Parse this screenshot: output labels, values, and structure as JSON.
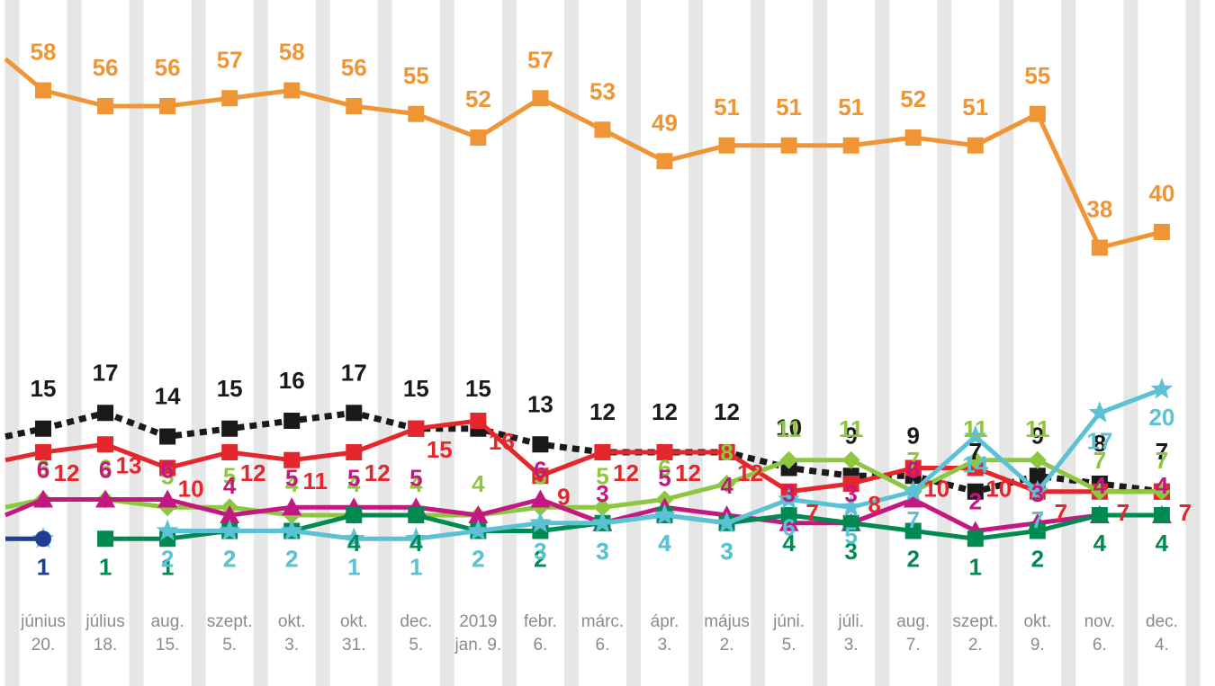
{
  "chart_data": {
    "type": "line",
    "title": "",
    "xlabel": "",
    "ylabel": "",
    "ylim": [
      0,
      60
    ],
    "grid": "vertical stripes",
    "categories": [
      [
        "június",
        "20."
      ],
      [
        "július",
        "18."
      ],
      [
        "aug.",
        "15."
      ],
      [
        "szept.",
        "5."
      ],
      [
        "okt.",
        "3."
      ],
      [
        "okt.",
        "31."
      ],
      [
        "dec.",
        "5."
      ],
      [
        "2019",
        "jan. 9."
      ],
      [
        "febr.",
        "6."
      ],
      [
        "márc.",
        "6."
      ],
      [
        "ápr.",
        "3."
      ],
      [
        "május",
        "2."
      ],
      [
        "júni.",
        "5."
      ],
      [
        "júli.",
        "3."
      ],
      [
        "aug.",
        "7."
      ],
      [
        "szept.",
        "2."
      ],
      [
        "okt.",
        "9."
      ],
      [
        "nov.",
        "6."
      ],
      [
        "dec.",
        "4."
      ]
    ],
    "series": [
      {
        "name": "orange",
        "color": "#ef9535",
        "marker": "square",
        "lead_in": 62,
        "values": [
          58,
          56,
          56,
          57,
          58,
          56,
          55,
          52,
          57,
          53,
          49,
          51,
          51,
          51,
          52,
          51,
          55,
          38,
          40
        ],
        "labels": [
          "58",
          "56",
          "56",
          "57",
          "58",
          "56",
          "55",
          "52",
          "57",
          "53",
          "49",
          "51",
          "51",
          "51",
          "52",
          "51",
          "55",
          "38",
          "40"
        ]
      },
      {
        "name": "black",
        "color": "#1a1a1a",
        "marker": "square",
        "dashed": true,
        "lead_in": 14,
        "values": [
          15,
          17,
          14,
          15,
          16,
          17,
          15,
          15,
          13,
          12,
          12,
          12,
          10,
          9,
          9,
          7,
          9,
          8,
          7
        ],
        "labels": [
          "15",
          "17",
          "14",
          "15",
          "16",
          "17",
          "15",
          "15",
          "13",
          "12",
          "12",
          "12",
          "10",
          "9",
          "9",
          "7",
          "9",
          "8",
          "7"
        ]
      },
      {
        "name": "red",
        "color": "#e4262d",
        "marker": "square",
        "lead_in": 11,
        "values": [
          12,
          13,
          10,
          12,
          11,
          12,
          15,
          16,
          9,
          12,
          12,
          12,
          7,
          8,
          10,
          10,
          7,
          7,
          7
        ],
        "labels": [
          "12",
          "13",
          "10",
          "12",
          "11",
          "12",
          "15",
          "16",
          "9",
          "12",
          "12",
          "12",
          "7",
          "8",
          "10",
          "10",
          "7",
          "7",
          "7"
        ]
      },
      {
        "name": "green",
        "color": "#8dc63f",
        "marker": "diamond",
        "lead_in": 5,
        "values": [
          6,
          6,
          5,
          5,
          4,
          4,
          4,
          4,
          5,
          5,
          6,
          8,
          11,
          11,
          7,
          11,
          11,
          7,
          7
        ],
        "labels": [
          "6",
          "6",
          "5",
          "5",
          "4",
          "4",
          "4",
          "4",
          "5",
          "5",
          "6",
          "8",
          "11",
          "11",
          "7",
          "11",
          "11",
          "7",
          "7"
        ]
      },
      {
        "name": "magenta",
        "color": "#c2187f",
        "marker": "triangle",
        "lead_in": 4,
        "values": [
          6,
          6,
          6,
          4,
          5,
          5,
          5,
          4,
          6,
          3,
          5,
          4,
          3,
          3,
          6,
          2,
          3,
          4,
          4
        ],
        "labels": [
          "6",
          "6",
          "6",
          "4",
          "5",
          "5",
          "5",
          "",
          "6",
          "3",
          "5",
          "4",
          "3",
          "3",
          "6",
          "2",
          "3",
          "4",
          "4"
        ]
      },
      {
        "name": "darkgreen",
        "color": "#008a51",
        "marker": "square",
        "values": [
          null,
          1,
          1,
          2,
          2,
          4,
          4,
          2,
          2,
          3,
          4,
          3,
          4,
          3,
          2,
          1,
          2,
          4,
          4
        ],
        "labels": [
          "",
          "1",
          "1",
          "2",
          "2",
          "4",
          "4",
          "2",
          "2",
          "3",
          "4",
          "3",
          "4",
          "3",
          "2",
          "1",
          "2",
          "4",
          "4"
        ]
      },
      {
        "name": "cyan",
        "color": "#5bc2d6",
        "marker": "star",
        "lead_in": 1,
        "values": [
          1,
          null,
          2,
          2,
          2,
          1,
          1,
          2,
          3,
          3,
          4,
          3,
          6,
          5,
          7,
          14,
          7,
          17,
          20
        ],
        "labels": [
          "1",
          "",
          "2",
          "2",
          "2",
          "1",
          "1",
          "2",
          "3",
          "3",
          "4",
          "3",
          "6",
          "5",
          "7",
          "14",
          "7",
          "17",
          "20"
        ]
      },
      {
        "name": "navy",
        "color": "#1f3f94",
        "marker": "circle",
        "lead_in": 1,
        "values": [
          1,
          null,
          null,
          null,
          null,
          null,
          null,
          null,
          null,
          null,
          null,
          null,
          null,
          null,
          null,
          null,
          null,
          null,
          null
        ],
        "labels": [
          "1",
          "",
          "",
          "",
          "",
          "",
          "",
          "",
          "",
          "",
          "",
          "",
          "",
          "",
          "",
          "",
          "",
          "",
          ""
        ]
      }
    ]
  }
}
